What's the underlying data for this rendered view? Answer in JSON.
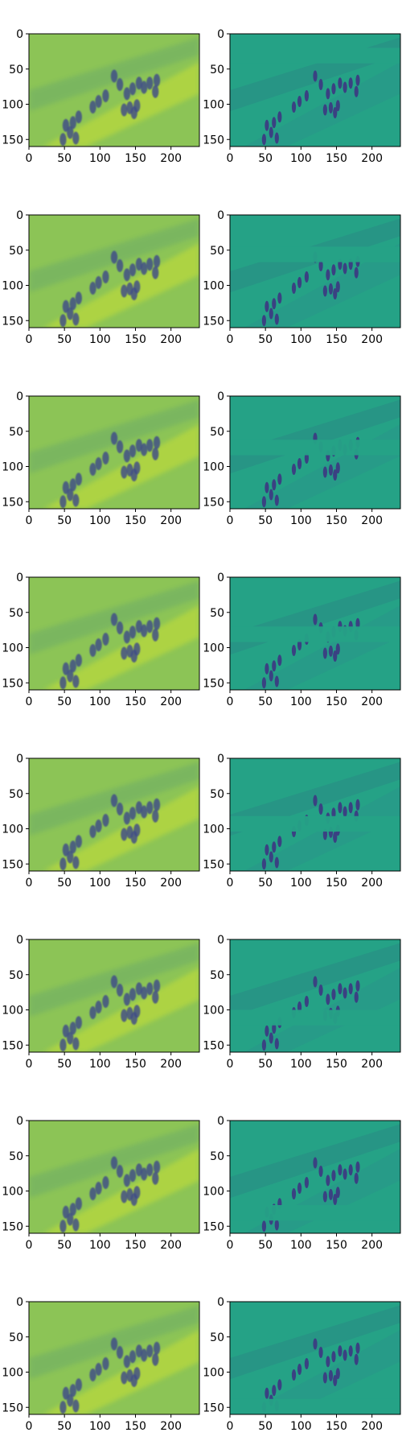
{
  "figure": {
    "rows": 8,
    "columns": 2,
    "colormap": "viridis",
    "x_ticks": [
      "0",
      "50",
      "100",
      "150",
      "200"
    ],
    "x_tick_values": [
      0,
      50,
      100,
      150,
      200
    ],
    "y_ticks": [
      "0",
      "50",
      "100",
      "150"
    ],
    "y_tick_values": [
      0,
      50,
      100,
      150
    ],
    "image_width": 240,
    "image_height": 160,
    "colors": {
      "left_bg": "#8cc456",
      "left_bright": "#c8e035",
      "left_dark": "#2f7d8a",
      "right_bg": "#25a286",
      "right_dark": "#3b3c82",
      "right_mid": "#2b8f8d",
      "blob_dark": "#3e4a89"
    },
    "panels_left": [
      {
        "label": "row-1-left"
      },
      {
        "label": "row-2-left"
      },
      {
        "label": "row-3-left"
      },
      {
        "label": "row-4-left"
      },
      {
        "label": "row-5-left"
      },
      {
        "label": "row-6-left"
      },
      {
        "label": "row-7-left"
      },
      {
        "label": "row-8-left"
      }
    ],
    "panels_right": [
      {
        "label": "row-1-right"
      },
      {
        "label": "row-2-right"
      },
      {
        "label": "row-3-right"
      },
      {
        "label": "row-4-right"
      },
      {
        "label": "row-5-right"
      },
      {
        "label": "row-6-right"
      },
      {
        "label": "row-7-right"
      },
      {
        "label": "row-8-right"
      }
    ]
  }
}
